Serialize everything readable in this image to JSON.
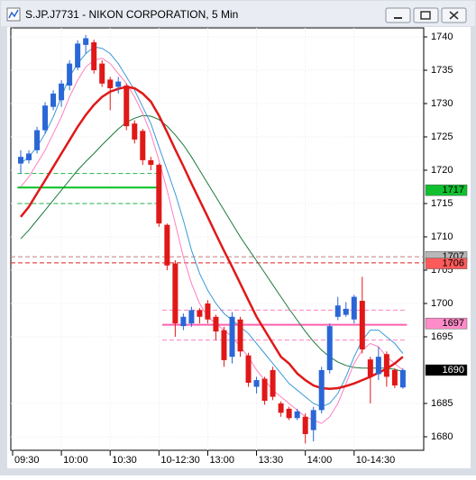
{
  "chart_data": {
    "type": "candlestick",
    "title": "S.JP.J7731 - NIKON CORPORATION, 5 Min",
    "ylim": [
      1677.97,
      1741.35
    ],
    "yticks": [
      1680,
      1685,
      1695,
      1700,
      1705,
      1710,
      1715,
      1720,
      1725,
      1730,
      1735,
      1740
    ],
    "xlim": [
      -1.22,
      49.56
    ],
    "xticks": [
      {
        "value": -1,
        "label": "09:30"
      },
      {
        "value": 5,
        "label": "10:00"
      },
      {
        "value": 11,
        "label": "10:30"
      },
      {
        "value": 17,
        "label": "10-12:30"
      },
      {
        "value": 23,
        "label": "13:00"
      },
      {
        "value": 29,
        "label": "13:30"
      },
      {
        "value": 35,
        "label": "14:00"
      },
      {
        "value": 41,
        "label": "10-14:30"
      }
    ],
    "grid": true,
    "up_color": "#2a66d6",
    "down_color": "#e01818",
    "candles": {
      "open": [
        1721,
        1721.5,
        1723,
        1726,
        1729.5,
        1730.5,
        1732.7,
        1735.4,
        1738.8,
        1739.2,
        1736,
        1733.6,
        1732.5,
        1732.7,
        1727,
        1725.9,
        1721.5,
        1720.8,
        1711.8,
        1706,
        1696.6,
        1697,
        1699,
        1700,
        1698,
        1696,
        1692,
        1697.6,
        1692.2,
        1687.5,
        1688.7,
        1690,
        1685,
        1684.2,
        1682.8,
        1683,
        1681,
        1684,
        1690,
        1698,
        1698.3,
        1697.6,
        1700.4,
        1691.6,
        1689.4,
        1692.4,
        1690,
        1687.4
      ],
      "high": [
        1723,
        1723,
        1726.5,
        1730.2,
        1732,
        1733.5,
        1736.5,
        1739.5,
        1740.3,
        1739.6,
        1736.5,
        1734,
        1734,
        1733,
        1727.5,
        1726.2,
        1722,
        1721,
        1712,
        1706.5,
        1698.5,
        1699.5,
        1699.3,
        1700.5,
        1698.3,
        1696.5,
        1698.7,
        1698,
        1692.6,
        1689,
        1689,
        1690.5,
        1685.3,
        1684.5,
        1684.2,
        1683.5,
        1684.5,
        1690.5,
        1697,
        1701,
        1700.2,
        1701.3,
        1704,
        1692,
        1693.5,
        1692.8,
        1690.3,
        1690.3
      ],
      "low": [
        1719.5,
        1721,
        1722.5,
        1725.5,
        1729,
        1729.5,
        1732,
        1735,
        1737.5,
        1734.5,
        1732.5,
        1729,
        1731.5,
        1726,
        1724,
        1720.8,
        1720,
        1711.5,
        1705,
        1695,
        1696,
        1696.5,
        1697,
        1697,
        1694.5,
        1690.5,
        1691,
        1692,
        1687.5,
        1686.5,
        1684.8,
        1685.5,
        1683,
        1682.5,
        1682.5,
        1679,
        1679.3,
        1683.5,
        1689.5,
        1697.5,
        1698,
        1697,
        1692.5,
        1685,
        1688.5,
        1687.5,
        1687.3,
        1687.2
      ],
      "close": [
        1722,
        1722.5,
        1726,
        1729.7,
        1731.5,
        1733,
        1736,
        1739,
        1739.8,
        1735,
        1733,
        1732.3,
        1733.3,
        1726.6,
        1724.6,
        1721.5,
        1720.8,
        1712,
        1705.7,
        1697,
        1698,
        1699,
        1698,
        1697.6,
        1695.8,
        1691.5,
        1698,
        1692.8,
        1688.1,
        1688.5,
        1685.4,
        1686,
        1683.6,
        1682.8,
        1683.8,
        1680.4,
        1684,
        1690,
        1696.6,
        1699.7,
        1699.2,
        1701,
        1693.1,
        1689,
        1692,
        1689,
        1687.7,
        1690
      ]
    },
    "series": [
      {
        "color": "#1a7a3a",
        "width": 1,
        "values": [
          1709.7,
          1711,
          1712.5,
          1714,
          1715.5,
          1717,
          1718.5,
          1720,
          1721.3,
          1722.5,
          1723.8,
          1725,
          1726.2,
          1727.2,
          1727.8,
          1728.2,
          1728.1,
          1727.6,
          1726.6,
          1725.3,
          1723.8,
          1722,
          1720,
          1718,
          1716,
          1714,
          1712,
          1710,
          1708.2,
          1706.4,
          1704.6,
          1702.8,
          1701,
          1699.2,
          1697.5,
          1695.8,
          1694.3,
          1693,
          1692,
          1691.2,
          1690.7,
          1690.4,
          1690.3,
          1690.3,
          1690.3,
          1690.3,
          1690.1,
          1689.8
        ]
      },
      {
        "color": "#ff7fbf",
        "width": 1,
        "values": [
          1717.5,
          1719,
          1721,
          1723,
          1725.5,
          1728,
          1731,
          1733.5,
          1735.5,
          1736.5,
          1736.8,
          1736,
          1734.5,
          1733,
          1731,
          1728.5,
          1725.5,
          1721.5,
          1717,
          1712,
          1707,
          1703,
          1700,
          1698,
          1697,
          1696,
          1695,
          1693.5,
          1692,
          1690,
          1688.5,
          1687,
          1686,
          1685,
          1684,
          1683,
          1682.5,
          1682,
          1683,
          1685,
          1688,
          1691,
          1693,
          1694,
          1693.5,
          1692,
          1691,
          1690
        ]
      },
      {
        "color": "#3a9ad9",
        "width": 1,
        "values": [
          1721,
          1722,
          1723.5,
          1725.5,
          1728,
          1731,
          1734,
          1736,
          1737.5,
          1738.5,
          1738.3,
          1737.5,
          1736,
          1734,
          1732,
          1729.5,
          1727,
          1723.5,
          1720,
          1716.5,
          1712.5,
          1708,
          1704.5,
          1702,
          1700,
          1698.5,
          1697.5,
          1696.5,
          1695.5,
          1694,
          1692.5,
          1691,
          1689.5,
          1688,
          1687,
          1686,
          1685,
          1684.5,
          1685,
          1686.5,
          1689,
          1692,
          1694.5,
          1696,
          1696,
          1695,
          1694,
          1692.5
        ]
      },
      {
        "color": "#e01818",
        "width": 2.5,
        "values": [
          1713,
          1714.5,
          1716.5,
          1718.5,
          1720.5,
          1722.5,
          1724.5,
          1726.5,
          1728.3,
          1729.8,
          1731,
          1731.8,
          1732.2,
          1732.5,
          1732.3,
          1731.5,
          1730.3,
          1728.2,
          1725.7,
          1723.1,
          1720.6,
          1718,
          1715.5,
          1713,
          1710.4,
          1707.9,
          1705.5,
          1703,
          1700.5,
          1698,
          1696,
          1694,
          1692,
          1691,
          1689.5,
          1688.5,
          1687.7,
          1687.3,
          1687.2,
          1687.3,
          1687.6,
          1688,
          1688.5,
          1689,
          1689.6,
          1690.2,
          1691,
          1692
        ]
      }
    ],
    "hlines": [
      {
        "value": 1719.5,
        "color": "#22b04a",
        "dashed": true,
        "start": -0.4,
        "end": 17.2
      },
      {
        "value": 1717.4,
        "color": "#00c020",
        "dashed": false,
        "start": -0.4,
        "end": 17.2
      },
      {
        "value": 1715,
        "color": "#22b04a",
        "dashed": true,
        "start": -0.4,
        "end": 17.2
      },
      {
        "value": 1707,
        "color": "#c08080",
        "dashed": true,
        "start": -1.22,
        "end": 49.56
      },
      {
        "value": 1706.1,
        "color": "#e02020",
        "dashed": true,
        "start": -1.22,
        "end": 49.56
      },
      {
        "value": 1699,
        "color": "#ff80c0",
        "dashed": true,
        "start": 17.4,
        "end": 47.5
      },
      {
        "value": 1696.8,
        "color": "#ff60b0",
        "dashed": false,
        "start": 17.4,
        "end": 47.5
      },
      {
        "value": 1694.5,
        "color": "#ff80c0",
        "dashed": true,
        "start": 17.4,
        "end": 47.5
      }
    ],
    "price_labels": [
      {
        "value": 1717,
        "color": "#10c030",
        "text_color": "#000000"
      },
      {
        "value": 1707,
        "color": "#b8b8b8",
        "text_color": "#000000"
      },
      {
        "value": 1706,
        "color": "#ff5a5a",
        "text_color": "#000000"
      },
      {
        "value": 1697,
        "color": "#ff8cc8",
        "text_color": "#000000"
      },
      {
        "value": 1690,
        "color": "#000000",
        "text_color": "#ffffff"
      }
    ]
  }
}
